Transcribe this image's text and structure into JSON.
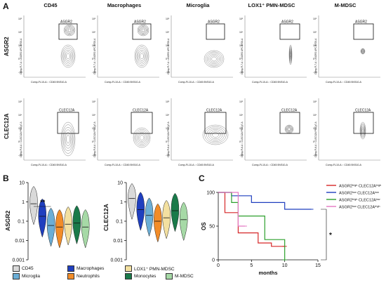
{
  "panels": {
    "a": "A",
    "b": "B",
    "c": "C"
  },
  "flow": {
    "columns": [
      "CD45",
      "Macrophages",
      "Microglia",
      "LOX1⁺ PMN-MDSC",
      "M-MDSC"
    ],
    "rows": [
      "ASGR2",
      "CLEC12A"
    ],
    "gate_labels": {
      "ASGR2": [
        "ASGR2",
        "ASGR2",
        "ASGR2",
        "ASGR2",
        "ASGR2"
      ],
      "CLEC12A": [
        "CLEC12A",
        "CLEC12A",
        "CLEC12A",
        "CLEC12A",
        "CLEC12A"
      ]
    },
    "x_axis_label": "Comp-FL10-A :: CD45 BV510-A",
    "y_axis_labels": {
      "ASGR2": "Comp-FL7-A :: ASGR2 APC-A700-A",
      "CLEC12A": "Comp-FL6-A :: CLEC12A PE-Cy7-A"
    },
    "tick_labels": [
      "10⁵",
      "10⁴",
      "10³",
      "0",
      "-10³"
    ]
  },
  "chart_data": [
    {
      "type": "violin",
      "ylabel": "ASGR2",
      "yscale": "log",
      "ylim": [
        0.001,
        10
      ],
      "yticks": [
        "10",
        "1",
        "0.1",
        "0.01",
        "0.001"
      ],
      "categories": [
        "CD45",
        "Macrophages",
        "Microglia",
        "Neutrophils",
        "LOX1⁺ PMN-MDSC",
        "Monocytes",
        "M-MDSC"
      ],
      "medians": [
        0.8,
        0.18,
        0.06,
        0.05,
        0.07,
        0.08,
        0.05
      ],
      "significance": "**"
    },
    {
      "type": "violin",
      "ylabel": "CLEC12A",
      "yscale": "log",
      "ylim": [
        0.001,
        10
      ],
      "yticks": [
        "10",
        "1",
        "0.1",
        "0.01",
        "0.001"
      ],
      "categories": [
        "CD45",
        "Macrophages",
        "Microglia",
        "Neutrophils",
        "LOX1⁺ PMN-MDSC",
        "Monocytes",
        "M-MDSC"
      ],
      "medians": [
        1.5,
        0.4,
        0.2,
        0.1,
        0.15,
        0.35,
        0.12
      ]
    },
    {
      "type": "line",
      "xlabel": "months",
      "ylabel": "OS",
      "xlim": [
        0,
        15
      ],
      "ylim": [
        0,
        100
      ],
      "xticks": [
        "0",
        "5",
        "10",
        "15"
      ],
      "yticks": [
        "0",
        "50",
        "100"
      ],
      "series": [
        {
          "name": "ASGR2ʰⁱᵍʰ CLEC12Aʰⁱᵍʰ",
          "color": "#d62728",
          "x": [
            0,
            1,
            3,
            6,
            8,
            10
          ],
          "y": [
            100,
            70,
            40,
            25,
            20,
            20
          ]
        },
        {
          "name": "ASGR2ˡᵒʷ CLEC12Aˡᵒʷ",
          "color": "#1f3fbf",
          "x": [
            0,
            2,
            5,
            10,
            13,
            14
          ],
          "y": [
            100,
            95,
            85,
            75,
            75,
            75
          ]
        },
        {
          "name": "ASGR2ʰⁱᵍʰ CLEC12Aˡᵒʷ",
          "color": "#2ca02c",
          "x": [
            0,
            2,
            3,
            4,
            7,
            10
          ],
          "y": [
            100,
            85,
            65,
            65,
            30,
            0
          ]
        },
        {
          "name": "ASGR2ˡᵒʷ CLEC12Aʰⁱᵍʰ",
          "color": "#e377c2",
          "x": [
            0,
            1,
            3,
            4
          ],
          "y": [
            100,
            100,
            50,
            50
          ]
        }
      ],
      "significance": "*"
    }
  ],
  "legend_b": {
    "items": [
      {
        "label": "CD45",
        "color": "#d9d9d9"
      },
      {
        "label": "Macrophages",
        "color": "#1f3fbf"
      },
      {
        "label": "LOX1⁺ PMN-MDSC",
        "color": "#f3e0a0"
      },
      {
        "label": "Microglia",
        "color": "#6baed6"
      },
      {
        "label": "Neutrophils",
        "color": "#f28c28"
      },
      {
        "label": "Monocytes",
        "color": "#1a7a4a"
      },
      {
        "label": "M-MDSC",
        "color": "#a6d9a6"
      }
    ]
  }
}
